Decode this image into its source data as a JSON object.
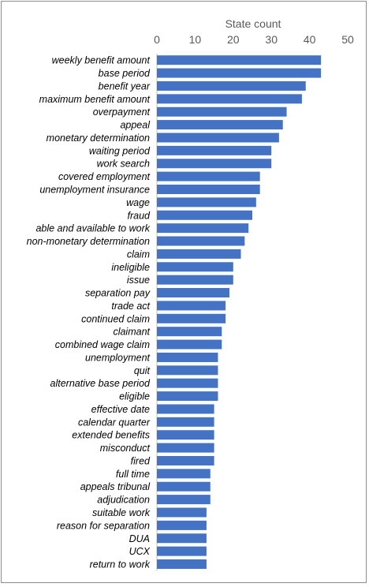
{
  "chart_data": {
    "type": "bar",
    "orientation": "horizontal",
    "xlabel": "State count",
    "ylabel": "",
    "xlim": [
      0,
      50
    ],
    "x_ticks": [
      0,
      10,
      20,
      30,
      40,
      50
    ],
    "axis_position": "top",
    "grid": false,
    "legend": "none",
    "colors": {
      "bar": "#4472c4"
    },
    "categories": [
      "weekly benefit amount",
      "base period",
      "benefit year",
      "maximum benefit amount",
      "overpayment",
      "appeal",
      "monetary determination",
      "waiting period",
      "work search",
      "covered employment",
      "unemployment insurance",
      "wage",
      "fraud",
      "able and available to work",
      "non-monetary determination",
      "claim",
      "ineligible",
      "issue",
      "separation pay",
      "trade act",
      "continued claim",
      "claimant",
      "combined wage claim",
      "unemployment",
      "quit",
      "alternative base period",
      "eligible",
      "effective date",
      "calendar quarter",
      "extended benefits",
      "misconduct",
      "fired",
      "full time",
      "appeals tribunal",
      "adjudication",
      "suitable work",
      "reason for separation",
      "DUA",
      "UCX",
      "return to work"
    ],
    "values": [
      43,
      43,
      39,
      38,
      34,
      33,
      32,
      30,
      30,
      27,
      27,
      26,
      25,
      24,
      23,
      22,
      20,
      20,
      19,
      18,
      18,
      17,
      17,
      16,
      16,
      16,
      16,
      15,
      15,
      15,
      15,
      15,
      14,
      14,
      14,
      13,
      13,
      13,
      13,
      13
    ]
  }
}
